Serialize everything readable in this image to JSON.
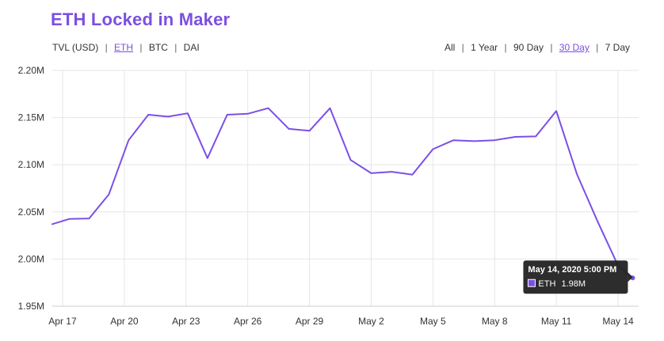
{
  "title": "ETH Locked in Maker",
  "metric_label": "TVL (USD)",
  "currency_options": [
    {
      "label": "ETH",
      "active": true
    },
    {
      "label": "BTC",
      "active": false
    },
    {
      "label": "DAI",
      "active": false
    }
  ],
  "range_options": [
    {
      "label": "All",
      "active": false
    },
    {
      "label": "1 Year",
      "active": false
    },
    {
      "label": "90 Day",
      "active": false
    },
    {
      "label": "30 Day",
      "active": true
    },
    {
      "label": "7 Day",
      "active": false
    }
  ],
  "colors": {
    "accent": "#7b4fe0",
    "line": "#7c4fe6",
    "grid": "#e6e6e6",
    "tooltip_bg": "#222222"
  },
  "tooltip": {
    "date": "May 14, 2020 5:00 PM",
    "series": "ETH",
    "value": "1.98M"
  },
  "chart_data": {
    "type": "line",
    "y_ticks": [
      1950000,
      2000000,
      2050000,
      2100000,
      2150000,
      2200000
    ],
    "y_tick_labels": [
      "1.95M",
      "2.00M",
      "2.05M",
      "2.10M",
      "2.15M",
      "2.20M"
    ],
    "ylim": [
      1950000,
      2200000
    ],
    "x_ticks": [
      "2020-04-17",
      "2020-04-20",
      "2020-04-23",
      "2020-04-26",
      "2020-04-29",
      "2020-05-02",
      "2020-05-05",
      "2020-05-08",
      "2020-05-11",
      "2020-05-14"
    ],
    "x_tick_labels": [
      "Apr 17",
      "Apr 20",
      "Apr 23",
      "Apr 26",
      "Apr 29",
      "May 2",
      "May 5",
      "May 8",
      "May 11",
      "May 14"
    ],
    "xlim": [
      "2020-04-16T12:00",
      "2020-05-15T00:00"
    ],
    "series": [
      {
        "name": "ETH",
        "points": [
          [
            "2020-04-16T12:00",
            2037000
          ],
          [
            "2020-04-17T08:00",
            2042500
          ],
          [
            "2020-04-18T07:00",
            2043000
          ],
          [
            "2020-04-19T06:00",
            2068500
          ],
          [
            "2020-04-20T05:00",
            2126000
          ],
          [
            "2020-04-21T04:00",
            2153000
          ],
          [
            "2020-04-22T03:00",
            2151000
          ],
          [
            "2020-04-23T02:00",
            2154500
          ],
          [
            "2020-04-24T01:00",
            2107000
          ],
          [
            "2020-04-25T00:00",
            2153000
          ],
          [
            "2020-04-26T00:00",
            2154000
          ],
          [
            "2020-04-27T00:00",
            2160000
          ],
          [
            "2020-04-28T00:00",
            2138000
          ],
          [
            "2020-04-29T00:00",
            2136000
          ],
          [
            "2020-04-30T00:00",
            2160000
          ],
          [
            "2020-05-01T00:00",
            2105000
          ],
          [
            "2020-05-02T00:00",
            2091000
          ],
          [
            "2020-05-03T00:00",
            2092500
          ],
          [
            "2020-05-04T00:00",
            2089500
          ],
          [
            "2020-05-05T00:00",
            2116500
          ],
          [
            "2020-05-06T00:00",
            2126000
          ],
          [
            "2020-05-07T00:00",
            2125000
          ],
          [
            "2020-05-08T00:00",
            2126000
          ],
          [
            "2020-05-09T00:00",
            2129500
          ],
          [
            "2020-05-10T00:00",
            2130000
          ],
          [
            "2020-05-11T00:00",
            2157000
          ],
          [
            "2020-05-12T00:00",
            2090000
          ],
          [
            "2020-05-13T00:00",
            2040000
          ],
          [
            "2020-05-14T00:00",
            1993000
          ],
          [
            "2020-05-14T17:00",
            1980000
          ]
        ]
      }
    ]
  }
}
